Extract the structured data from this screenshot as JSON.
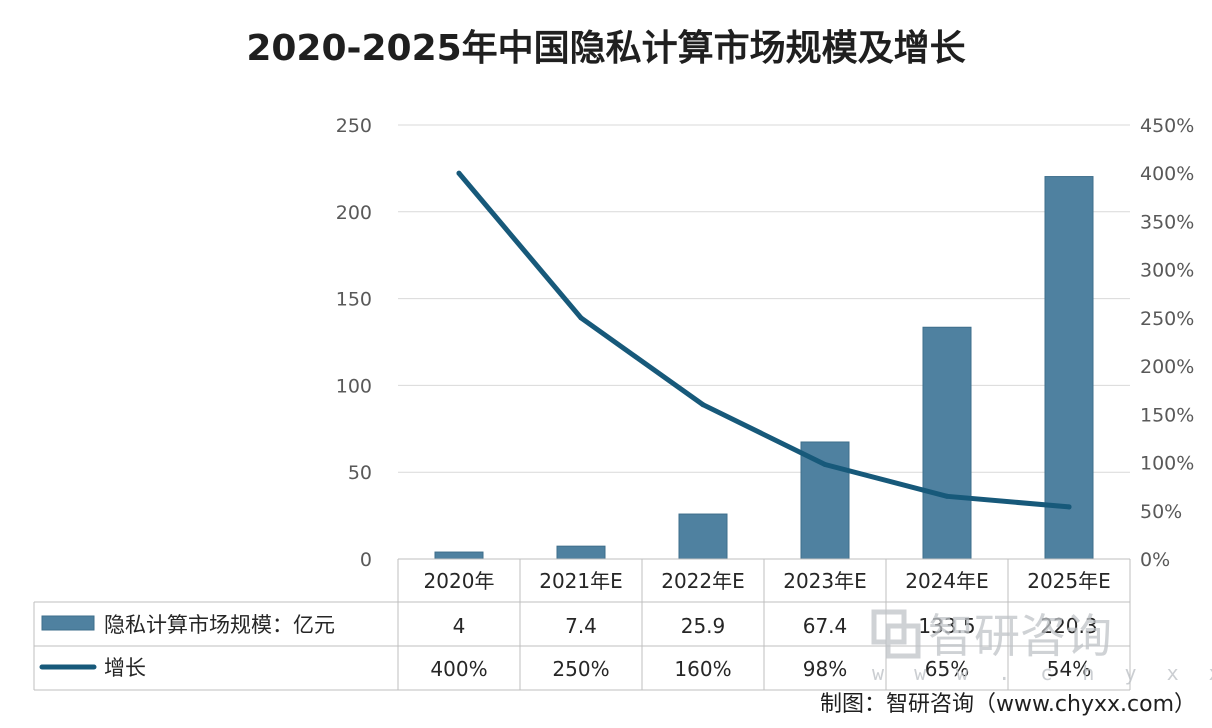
{
  "colors": {
    "bar": "#4f81a0",
    "bar_stroke": "#3e6e8b",
    "line": "#17597a",
    "grid": "#d9d9d9",
    "axis_text": "#595959"
  },
  "chart_data": {
    "type": "bar+line",
    "title": "2020-2025年中国隐私计算市场规模及增长",
    "categories": [
      "2020年",
      "2021年E",
      "2022年E",
      "2023年E",
      "2024年E",
      "2025年E"
    ],
    "series": [
      {
        "name": "隐私计算市场规模：亿元",
        "type": "bar",
        "axis": "left",
        "values": [
          4,
          7.4,
          25.9,
          67.4,
          133.5,
          220.3
        ],
        "labels": [
          "4",
          "7.4",
          "25.9",
          "67.4",
          "133.5",
          "220.3"
        ]
      },
      {
        "name": "增长",
        "type": "line",
        "axis": "right",
        "values": [
          400,
          250,
          160,
          98,
          65,
          54
        ],
        "labels": [
          "400%",
          "250%",
          "160%",
          "98%",
          "65%",
          "54%"
        ]
      }
    ],
    "y_left": {
      "min": 0,
      "max": 250,
      "ticks": [
        "0",
        "50",
        "100",
        "150",
        "200",
        "250"
      ]
    },
    "y_right": {
      "min": 0,
      "max": 450,
      "ticks": [
        "0%",
        "50%",
        "100%",
        "150%",
        "200%",
        "250%",
        "300%",
        "350%",
        "400%",
        "450%"
      ]
    },
    "grid": true,
    "legend": "data-table-bottom"
  },
  "watermark": {
    "brand": "智研咨询",
    "url": "w w w . c h y x x . c o m"
  },
  "source": "制图：智研咨询（www.chyxx.com）"
}
